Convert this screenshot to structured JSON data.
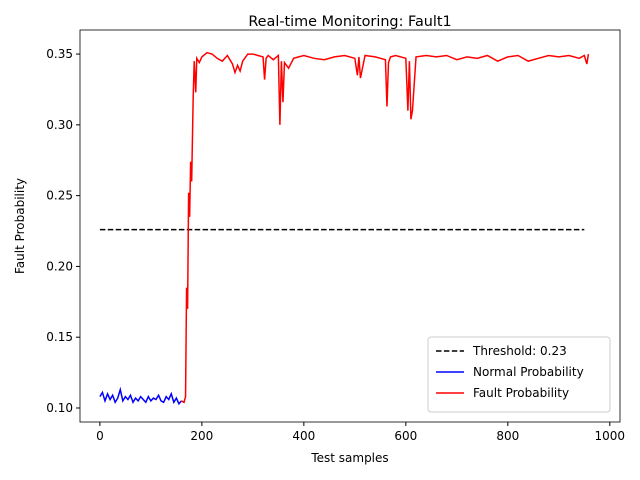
{
  "chart_data": {
    "type": "line",
    "title": "Real-time Monitoring: Fault1",
    "x_label": "Test samples",
    "y_label": "Fault Probability",
    "xlim": [
      -39,
      1020
    ],
    "ylim": [
      0.0901,
      0.367
    ],
    "xticks": [
      0,
      200,
      400,
      600,
      800,
      1000
    ],
    "yticks": [
      {
        "value": 0.1,
        "label": "0.10"
      },
      0.15,
      {
        "value": 0.2,
        "label": "0.20"
      },
      0.25,
      {
        "value": 0.3,
        "label": "0.30"
      },
      0.35
    ],
    "legend": "lower right",
    "series": [
      {
        "name": "Threshold: 0.23",
        "color": "#000000",
        "linestyle": "dashed",
        "x": [
          0,
          950
        ],
        "values": [
          0.226,
          0.226
        ]
      },
      {
        "name": "Normal Probability",
        "color": "#0000ff",
        "linestyle": "solid",
        "x": [
          0,
          5,
          10,
          15,
          20,
          25,
          30,
          35,
          40,
          45,
          50,
          55,
          60,
          65,
          70,
          75,
          80,
          85,
          90,
          95,
          100,
          105,
          110,
          115,
          120,
          125,
          130,
          135,
          140,
          145,
          150,
          155,
          160
        ],
        "values": [
          0.108,
          0.111,
          0.105,
          0.11,
          0.106,
          0.109,
          0.104,
          0.107,
          0.113,
          0.105,
          0.108,
          0.106,
          0.109,
          0.104,
          0.107,
          0.105,
          0.108,
          0.106,
          0.104,
          0.108,
          0.105,
          0.107,
          0.106,
          0.109,
          0.105,
          0.104,
          0.108,
          0.106,
          0.11,
          0.104,
          0.107,
          0.103,
          0.105
        ]
      },
      {
        "name": "Fault Probability",
        "color": "#ff0000",
        "linestyle": "solid",
        "x": [
          160,
          165,
          168,
          170,
          172,
          174,
          176,
          178,
          180,
          183,
          185,
          188,
          190,
          195,
          200,
          210,
          220,
          230,
          240,
          250,
          260,
          265,
          270,
          275,
          280,
          290,
          300,
          310,
          320,
          323,
          326,
          330,
          340,
          350,
          353,
          356,
          359,
          362,
          370,
          380,
          390,
          400,
          420,
          440,
          460,
          480,
          500,
          505,
          508,
          511,
          520,
          540,
          560,
          563,
          566,
          570,
          580,
          600,
          604,
          607,
          610,
          613,
          620,
          640,
          660,
          680,
          700,
          720,
          740,
          760,
          780,
          800,
          820,
          840,
          860,
          880,
          900,
          920,
          940,
          950,
          955,
          958
        ],
        "values": [
          0.105,
          0.104,
          0.108,
          0.185,
          0.17,
          0.252,
          0.235,
          0.274,
          0.26,
          0.32,
          0.345,
          0.323,
          0.347,
          0.344,
          0.348,
          0.351,
          0.35,
          0.347,
          0.345,
          0.349,
          0.343,
          0.337,
          0.342,
          0.338,
          0.345,
          0.35,
          0.35,
          0.349,
          0.348,
          0.332,
          0.347,
          0.349,
          0.346,
          0.349,
          0.3,
          0.345,
          0.316,
          0.344,
          0.34,
          0.347,
          0.348,
          0.349,
          0.347,
          0.346,
          0.348,
          0.349,
          0.347,
          0.335,
          0.348,
          0.333,
          0.349,
          0.348,
          0.346,
          0.313,
          0.344,
          0.348,
          0.349,
          0.347,
          0.31,
          0.345,
          0.304,
          0.31,
          0.348,
          0.349,
          0.348,
          0.349,
          0.346,
          0.348,
          0.347,
          0.349,
          0.345,
          0.348,
          0.349,
          0.345,
          0.347,
          0.349,
          0.348,
          0.349,
          0.347,
          0.349,
          0.343,
          0.35
        ]
      }
    ]
  }
}
